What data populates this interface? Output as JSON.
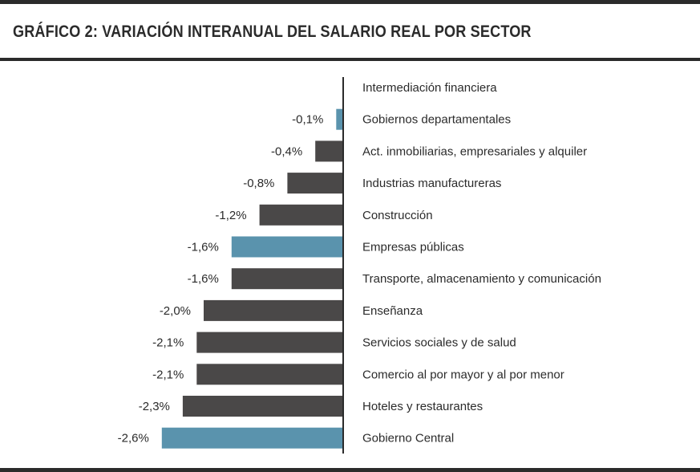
{
  "title": "GRÁFICO 2: VARIACIÓN INTERANUAL DEL SALARIO REAL POR SECTOR",
  "colors": {
    "dark": "#4a4848",
    "highlight": "#5a93ad",
    "axis": "#2b2b2b"
  },
  "chart_data": {
    "type": "bar",
    "orientation": "horizontal",
    "title": "GRÁFICO 2: VARIACIÓN INTERANUAL DEL SALARIO REAL POR SECTOR",
    "xlabel": "",
    "ylabel": "",
    "xlim": [
      -2.8,
      0
    ],
    "grid": false,
    "categories": [
      "Intermediación financiera",
      "Gobiernos departamentales",
      "Act. inmobiliarias, empresariales y alquiler",
      "Industrias manufactureras",
      "Construcción",
      "Empresas públicas",
      "Transporte, almacenamiento y comunicación",
      "Enseñanza",
      "Servicios sociales y de salud",
      "Comercio al por mayor y al por menor",
      "Hoteles y restaurantes",
      "Gobierno Central"
    ],
    "values": [
      0.0,
      -0.1,
      -0.4,
      -0.8,
      -1.2,
      -1.6,
      -1.6,
      -2.0,
      -2.1,
      -2.1,
      -2.3,
      -2.6
    ],
    "value_labels": [
      "",
      "-0,1%",
      "-0,4%",
      "-0,8%",
      "-1,2%",
      "-1,6%",
      "-1,6%",
      "-2,0%",
      "-2,1%",
      "-2,1%",
      "-2,3%",
      "-2,6%"
    ],
    "highlighted": [
      false,
      true,
      false,
      false,
      false,
      true,
      false,
      false,
      false,
      false,
      false,
      true
    ]
  }
}
